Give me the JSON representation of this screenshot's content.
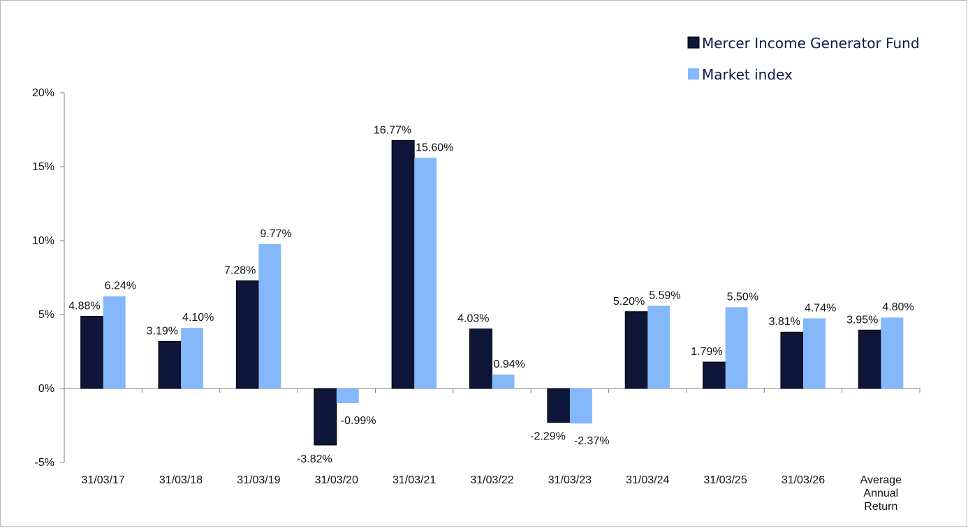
{
  "chart_data": {
    "type": "bar",
    "categories": [
      "31/03/17",
      "31/03/18",
      "31/03/19",
      "31/03/20",
      "31/03/21",
      "31/03/22",
      "31/03/23",
      "31/03/24",
      "31/03/25",
      "31/03/26",
      [
        "Average",
        "Annual",
        "Return"
      ]
    ],
    "series": [
      {
        "name": "Mercer Income Generator Fund",
        "color": "#0d1538",
        "values": [
          4.88,
          3.19,
          7.28,
          -3.82,
          16.77,
          4.03,
          -2.29,
          5.2,
          1.79,
          3.81,
          3.95
        ],
        "labels": [
          "4.88%",
          "3.19%",
          "7.28%",
          "-3.82%",
          "16.77%",
          "4.03%",
          "-2.29%",
          "5.20%",
          "1.79%",
          "3.81%",
          "3.95%"
        ]
      },
      {
        "name": "Market index",
        "color": "#85b8fb",
        "values": [
          6.24,
          4.1,
          9.77,
          -0.99,
          15.6,
          0.94,
          -2.37,
          5.59,
          5.5,
          4.74,
          4.8
        ],
        "labels": [
          "6.24%",
          "4.10%",
          "9.77%",
          "-0.99%",
          "15.60%",
          "0.94%",
          "-2.37%",
          "5.59%",
          "5.50%",
          "4.74%",
          "4.80%"
        ]
      }
    ],
    "ylim": [
      -5,
      20
    ],
    "yticks": [
      -5,
      0,
      5,
      10,
      15,
      20
    ],
    "ytick_labels": [
      "-5%",
      "0%",
      "5%",
      "10%",
      "15%",
      "20%"
    ],
    "legend_position": "top-right",
    "legend_text_color": "#0d1a4a",
    "grid": false
  }
}
